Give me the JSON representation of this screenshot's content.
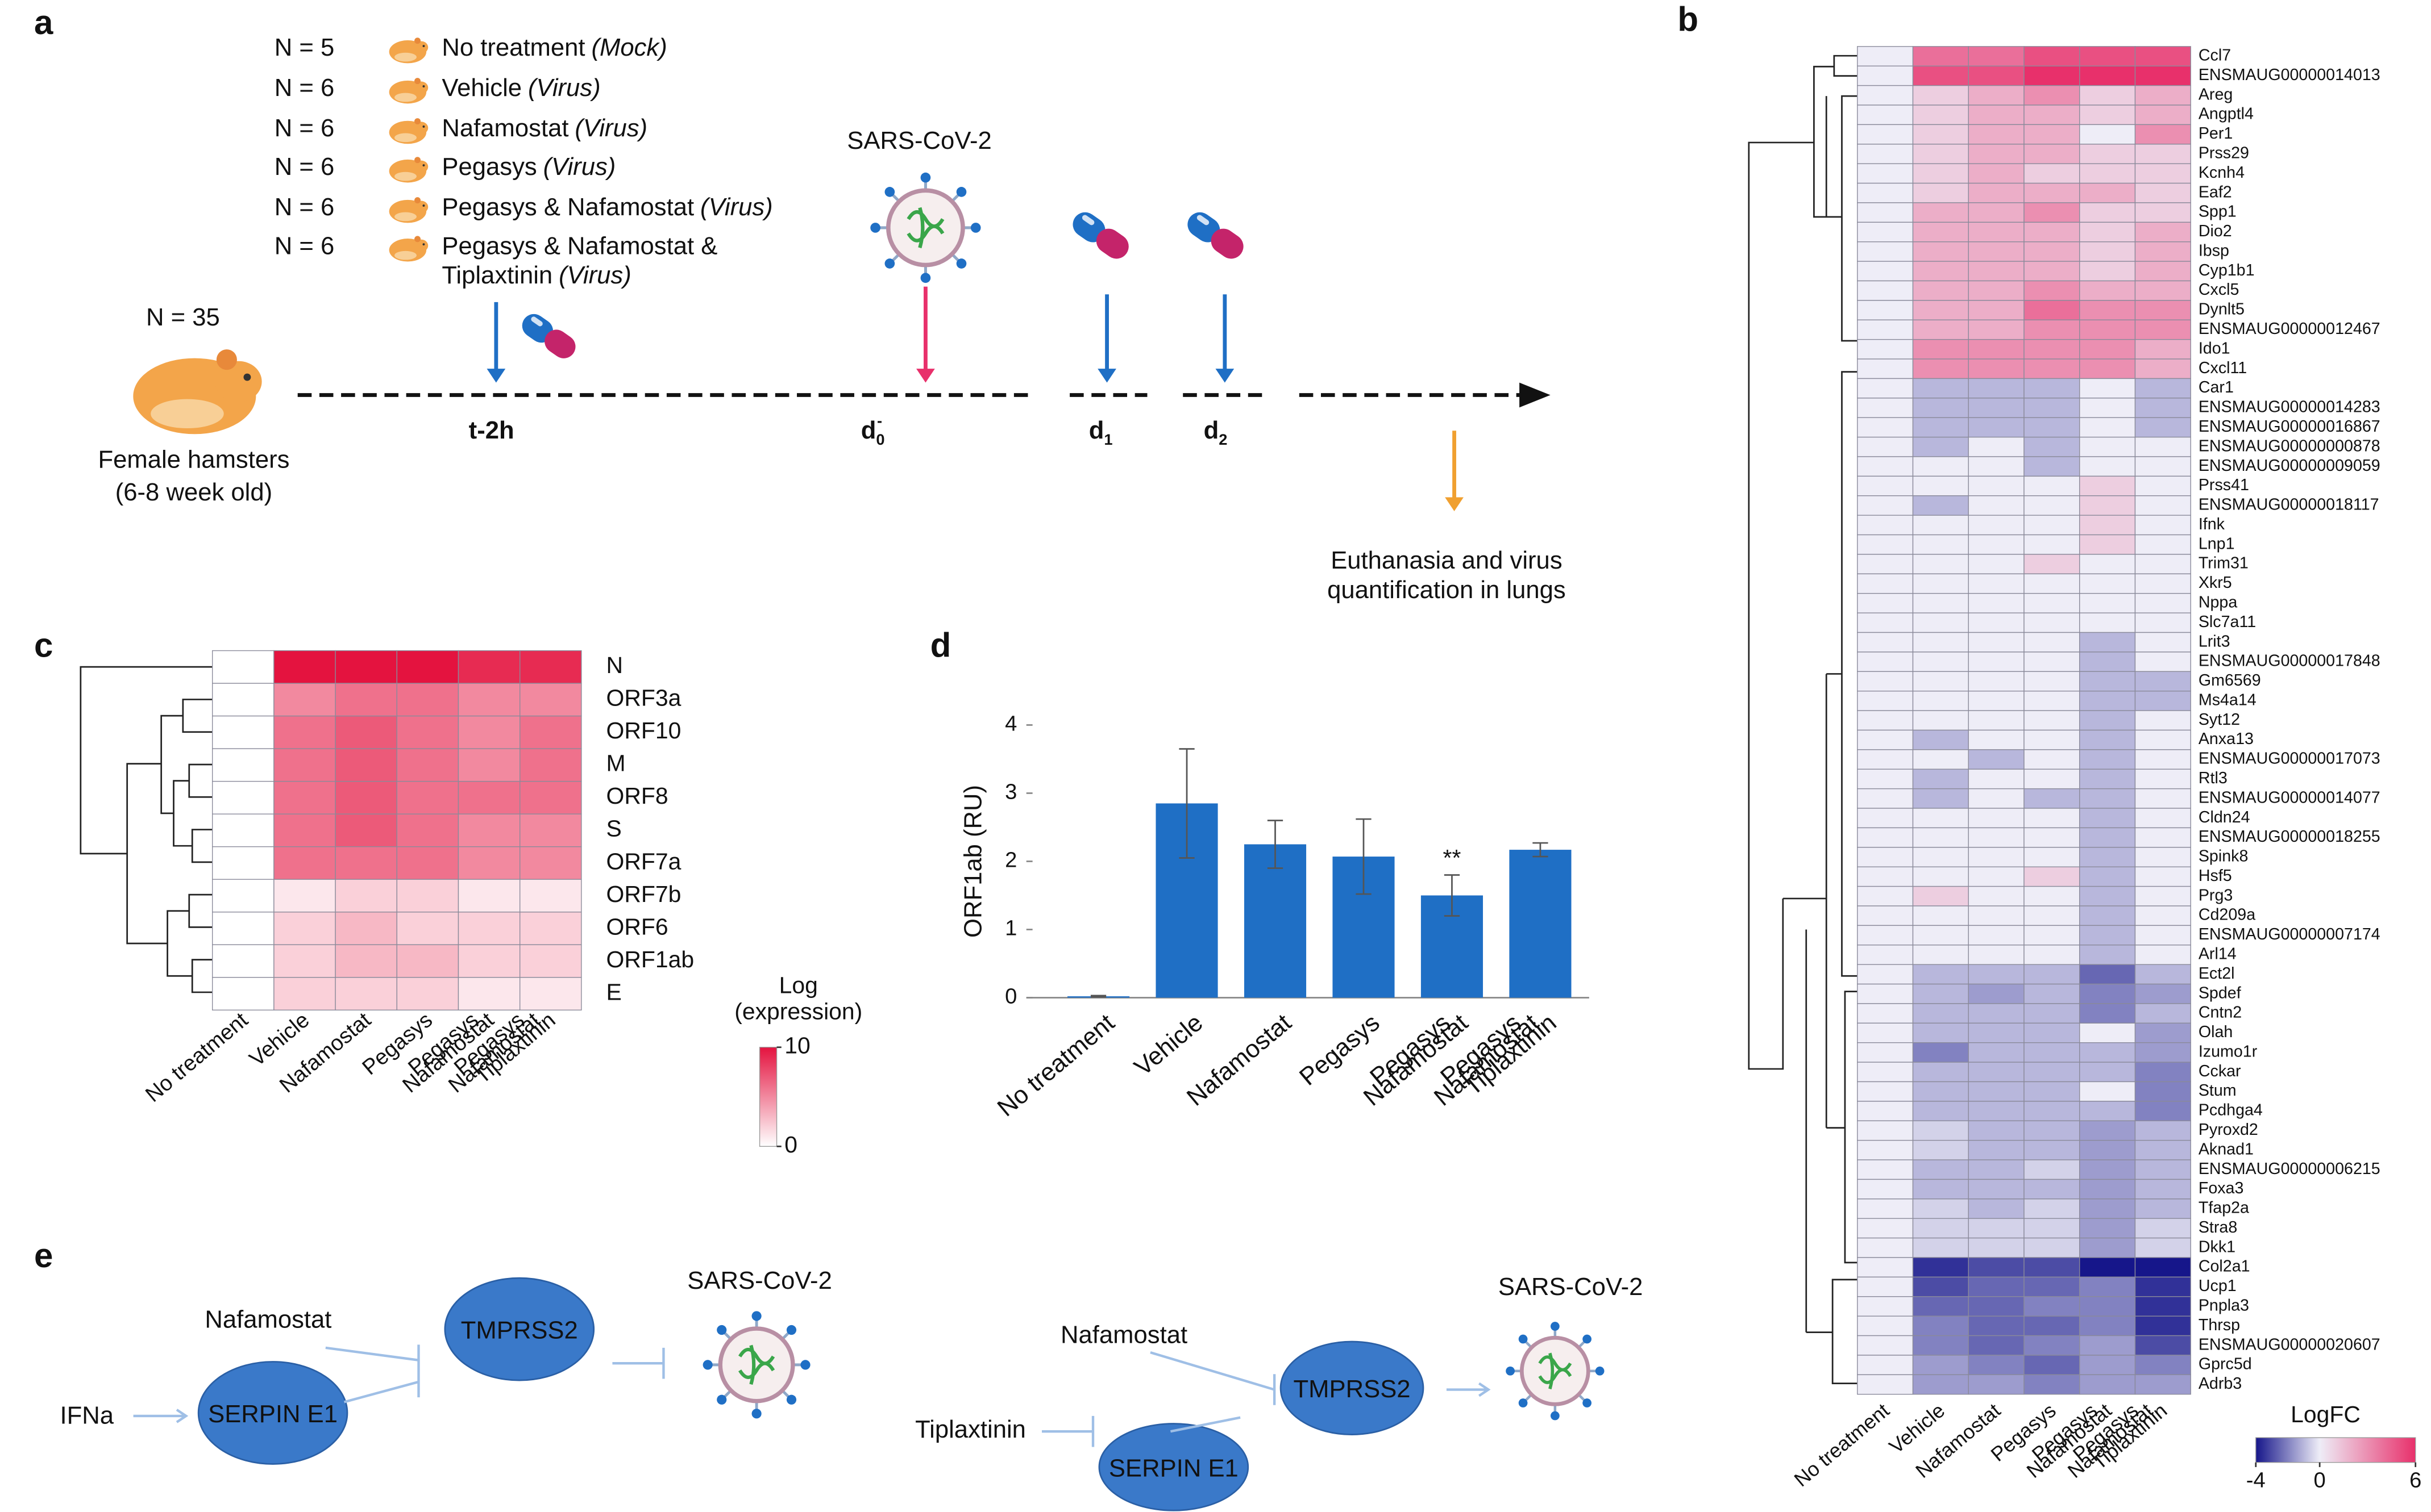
{
  "panel_labels": [
    "a",
    "b",
    "c",
    "d",
    "e"
  ],
  "timeline": {
    "groups": [
      {
        "n": "N = 5",
        "name": [
          "No treatment"
        ],
        "note": "(Mock)"
      },
      {
        "n": "N = 6",
        "name": [
          "Vehicle"
        ],
        "note": "(Virus)"
      },
      {
        "n": "N = 6",
        "name": [
          "Nafamostat"
        ],
        "note": "(Virus)"
      },
      {
        "n": "N = 6",
        "name": [
          "Pegasys"
        ],
        "note": "(Virus)"
      },
      {
        "n": "N = 6",
        "name": [
          "Pegasys & Nafamostat"
        ],
        "note": "(Virus)"
      },
      {
        "n": "N = 6",
        "name": [
          "Pegasys & Nafamostat &",
          "Tiplaxtinin"
        ],
        "note": "(Virus)"
      }
    ],
    "virus": "SARS-CoV-2",
    "cohort": "N = 35",
    "animal": [
      "Female hamsters",
      "(6-8 week old)"
    ],
    "timepoints": [
      {
        "text": "t-2h"
      },
      {
        "text": "d",
        "sub": "0",
        "sup": "-"
      },
      {
        "text": "d",
        "sub": "1"
      },
      {
        "text": "d",
        "sub": "2"
      }
    ],
    "endpoint": [
      "Euthanasia and virus",
      "quantification in lungs"
    ]
  },
  "chart_data": [
    {
      "type": "heatmap",
      "legend_title": "LogFC",
      "zlim": [
        -4,
        6
      ],
      "zticks": [
        -4,
        0,
        6
      ],
      "colors": [
        "#16168a",
        "#eeedf7",
        "#e8306b"
      ],
      "categories": [
        [
          "No treatment"
        ],
        [
          "Vehicle"
        ],
        [
          "Nafamostat"
        ],
        [
          "Pegasys"
        ],
        [
          "Pegasys",
          "Nafamostat"
        ],
        [
          "Pegasys",
          "Nafamostat",
          "Tiplaxtinin"
        ]
      ],
      "rows": [
        "Ccl7",
        "ENSMAUG00000014013",
        "Areg",
        "Angptl4",
        "Per1",
        "Prss29",
        "Kcnh4",
        "Eaf2",
        "Spp1",
        "Dio2",
        "Ibsp",
        "Cyp1b1",
        "Cxcl5",
        "Dynlt5",
        "ENSMAUG00000012467",
        "Ido1",
        "Cxcl11",
        "Car1",
        "ENSMAUG00000014283",
        "ENSMAUG00000016867",
        "ENSMAUG00000000878",
        "ENSMAUG00000009059",
        "Prss41",
        "ENSMAUG00000018117",
        "Ifnk",
        "Lnp1",
        "Trim31",
        "Xkr5",
        "Nppa",
        "Slc7a11",
        "Lrit3",
        "ENSMAUG00000017848",
        "Gm6569",
        "Ms4a14",
        "Syt12",
        "Anxa13",
        "ENSMAUG00000017073",
        "Rtl3",
        "ENSMAUG00000014077",
        "Cldn24",
        "ENSMAUG00000018255",
        "Spink8",
        "Hsf5",
        "Prg3",
        "Cd209a",
        "ENSMAUG00000007174",
        "Arl14",
        "Ect2l",
        "Spdef",
        "Cntn2",
        "Olah",
        "Izumo1r",
        "Cckar",
        "Stum",
        "Pcdhga4",
        "Pyroxd2",
        "Aknad1",
        "ENSMAUG00000006215",
        "Foxa3",
        "Tfap2a",
        "Stra8",
        "Dkk1",
        "Col2a1",
        "Ucp1",
        "Pnpla3",
        "Thrsp",
        "ENSMAUG00000020607",
        "Gprc5d",
        "Adrb3"
      ],
      "values": [
        [
          0,
          4,
          4,
          5,
          5,
          5
        ],
        [
          0,
          5,
          5,
          6,
          6,
          6
        ],
        [
          0,
          1,
          2,
          3,
          1,
          2
        ],
        [
          0,
          1,
          2,
          2,
          1,
          2
        ],
        [
          0,
          1,
          2,
          2,
          0,
          3
        ],
        [
          0,
          1,
          2,
          2,
          1,
          1
        ],
        [
          0,
          1,
          2,
          1,
          1,
          1
        ],
        [
          0,
          1,
          2,
          2,
          2,
          1
        ],
        [
          0,
          2,
          2,
          3,
          1,
          1
        ],
        [
          0,
          2,
          2,
          2,
          1,
          2
        ],
        [
          0,
          2,
          2,
          2,
          1,
          2
        ],
        [
          0,
          2,
          2,
          2,
          1,
          2
        ],
        [
          0,
          2,
          2,
          3,
          2,
          2
        ],
        [
          0,
          2,
          2,
          4,
          3,
          3
        ],
        [
          0,
          2,
          2,
          3,
          3,
          3
        ],
        [
          0,
          3,
          3,
          3,
          3,
          2
        ],
        [
          0,
          3,
          3,
          3,
          3,
          2
        ],
        [
          0,
          -1,
          -1,
          -1,
          0,
          -1
        ],
        [
          0,
          -1,
          -1,
          -1,
          0,
          -1
        ],
        [
          0,
          -1,
          -1,
          -1,
          0,
          -1
        ],
        [
          0,
          -1,
          0,
          -1,
          0,
          0
        ],
        [
          0,
          0,
          0,
          -1,
          0,
          0
        ],
        [
          0,
          0,
          0,
          0,
          1,
          0
        ],
        [
          0,
          -1,
          0,
          0,
          1,
          0
        ],
        [
          0,
          0,
          0,
          0,
          1,
          0
        ],
        [
          0,
          0,
          0,
          0,
          1,
          0
        ],
        [
          0,
          0,
          0,
          1,
          0,
          0
        ],
        [
          0,
          0,
          0,
          0,
          0,
          0
        ],
        [
          0,
          0,
          0,
          0,
          0,
          0
        ],
        [
          0,
          0,
          0,
          0,
          0,
          0
        ],
        [
          0,
          0,
          0,
          0,
          -1,
          0
        ],
        [
          0,
          0,
          0,
          0,
          -1,
          0
        ],
        [
          0,
          0,
          0,
          0,
          -1,
          -1
        ],
        [
          0,
          0,
          0,
          0,
          -1,
          -1
        ],
        [
          0,
          0,
          0,
          0,
          -1,
          0
        ],
        [
          0,
          -1,
          0,
          0,
          -1,
          0
        ],
        [
          0,
          0,
          -1,
          0,
          -1,
          0
        ],
        [
          0,
          -1,
          0,
          0,
          -1,
          0
        ],
        [
          0,
          -1,
          0,
          -1,
          -1,
          0
        ],
        [
          0,
          0,
          0,
          0,
          -1,
          0
        ],
        [
          0,
          0,
          0,
          0,
          -1,
          0
        ],
        [
          0,
          0,
          0,
          0,
          -1,
          0
        ],
        [
          0,
          0,
          0,
          1,
          -1,
          0
        ],
        [
          0,
          1,
          0,
          0,
          -1,
          0
        ],
        [
          0,
          0,
          0,
          0,
          -1,
          0
        ],
        [
          0,
          0,
          0,
          0,
          -1,
          0
        ],
        [
          0,
          0,
          0,
          0,
          -1,
          0
        ],
        [
          0,
          -1,
          -1,
          -1,
          -2.5,
          -1
        ],
        [
          0,
          -1,
          -1.5,
          -1,
          -2,
          -1.5
        ],
        [
          0,
          -1,
          -1,
          -1,
          -2,
          -1
        ],
        [
          0,
          -1,
          -1,
          -1,
          0,
          -1.5
        ],
        [
          0,
          -2,
          -1,
          -1,
          -1,
          -1.5
        ],
        [
          0,
          -1,
          -1,
          -1,
          -1,
          -2
        ],
        [
          0,
          -1,
          -1,
          -1,
          0,
          -2
        ],
        [
          0,
          -1,
          -1,
          -1,
          -1,
          -2
        ],
        [
          0,
          -0.5,
          -1,
          -1,
          -1.5,
          -1
        ],
        [
          0,
          -0.5,
          -1,
          -1,
          -1.5,
          -1
        ],
        [
          0,
          -1,
          -1,
          -0.5,
          -1.5,
          -1
        ],
        [
          0,
          -1,
          -1,
          -1,
          -1.5,
          -1
        ],
        [
          0,
          -0.5,
          -1,
          -0.5,
          -1.5,
          -1
        ],
        [
          0,
          -0.5,
          -0.5,
          -0.5,
          -1.5,
          -0.5
        ],
        [
          0,
          -0.5,
          -0.5,
          -0.5,
          -1.5,
          -0.5
        ],
        [
          0,
          -3.5,
          -3,
          -3,
          -4,
          -4
        ],
        [
          0,
          -3,
          -2.5,
          -2.5,
          -2,
          -3.5
        ],
        [
          0,
          -2.5,
          -2.5,
          -2,
          -2,
          -3.5
        ],
        [
          0,
          -2,
          -2.5,
          -2.5,
          -2,
          -3.5
        ],
        [
          0,
          -2,
          -2.5,
          -2,
          -1.5,
          -3
        ],
        [
          0,
          -1.5,
          -2,
          -2.5,
          -1.5,
          -2
        ],
        [
          0,
          -1.5,
          -1.5,
          -2,
          -1.5,
          -1.5
        ]
      ]
    },
    {
      "type": "heatmap",
      "legend_title": [
        "Log",
        "(expression)"
      ],
      "zlim": [
        0,
        10
      ],
      "zticks": [
        0,
        10
      ],
      "colors": [
        "#ffffff",
        "#e4133f"
      ],
      "categories": [
        [
          "No treatment"
        ],
        [
          "Vehicle"
        ],
        [
          "Nafamostat"
        ],
        [
          "Pegasys"
        ],
        [
          "Pegasys",
          "Nafamostat"
        ],
        [
          "Pegasys",
          "Nafamostat",
          "Tiplaxtinin"
        ]
      ],
      "rows": [
        "N",
        "ORF3a",
        "ORF10",
        "M",
        "ORF8",
        "S",
        "ORF7a",
        "ORF7b",
        "ORF6",
        "ORF1ab",
        "E"
      ],
      "values": [
        [
          0,
          10,
          10,
          10,
          9,
          9
        ],
        [
          0,
          5,
          6,
          6,
          5,
          5
        ],
        [
          0,
          6,
          7,
          6,
          5,
          6
        ],
        [
          0,
          6,
          7,
          6,
          5,
          6
        ],
        [
          0,
          6,
          7,
          6,
          6,
          6
        ],
        [
          0,
          6,
          7,
          6,
          5,
          5
        ],
        [
          0,
          6,
          6,
          6,
          5,
          5
        ],
        [
          0,
          1,
          2,
          2,
          1,
          1
        ],
        [
          0,
          2,
          3,
          2,
          2,
          2
        ],
        [
          0,
          2,
          3,
          3,
          2,
          2
        ],
        [
          0,
          2,
          2,
          2,
          1,
          1
        ]
      ]
    },
    {
      "type": "bar",
      "ylabel": "ORF1ab (RU)",
      "ylim": [
        0,
        4
      ],
      "yticks": [
        0,
        1,
        2,
        3,
        4
      ],
      "color": "#1f6fc5",
      "categories": [
        [
          "No treatment"
        ],
        [
          "Vehicle"
        ],
        [
          "Nafamostat"
        ],
        [
          "Pegasys"
        ],
        [
          "Pegasys",
          "Nafamostat"
        ],
        [
          "Pegasys",
          "Nafamostat",
          "Tiplaxtinin"
        ]
      ],
      "values": [
        0.02,
        2.85,
        2.25,
        2.07,
        1.5,
        2.17
      ],
      "errors": [
        0.01,
        0.8,
        0.35,
        0.55,
        0.3,
        0.1
      ],
      "significance": [
        null,
        null,
        null,
        null,
        "**",
        null
      ]
    }
  ],
  "pathways": {
    "left": {
      "drug": "Nafamostat",
      "input": "IFNa",
      "inhibitor": "SERPIN E1",
      "protease": "TMPRSS2",
      "virus": "SARS-CoV-2"
    },
    "right": {
      "drug": "Nafamostat",
      "inhibitor_drug": "Tiplaxtinin",
      "inhibitor": "SERPIN E1",
      "protease": "TMPRSS2",
      "virus": "SARS-CoV-2"
    }
  }
}
